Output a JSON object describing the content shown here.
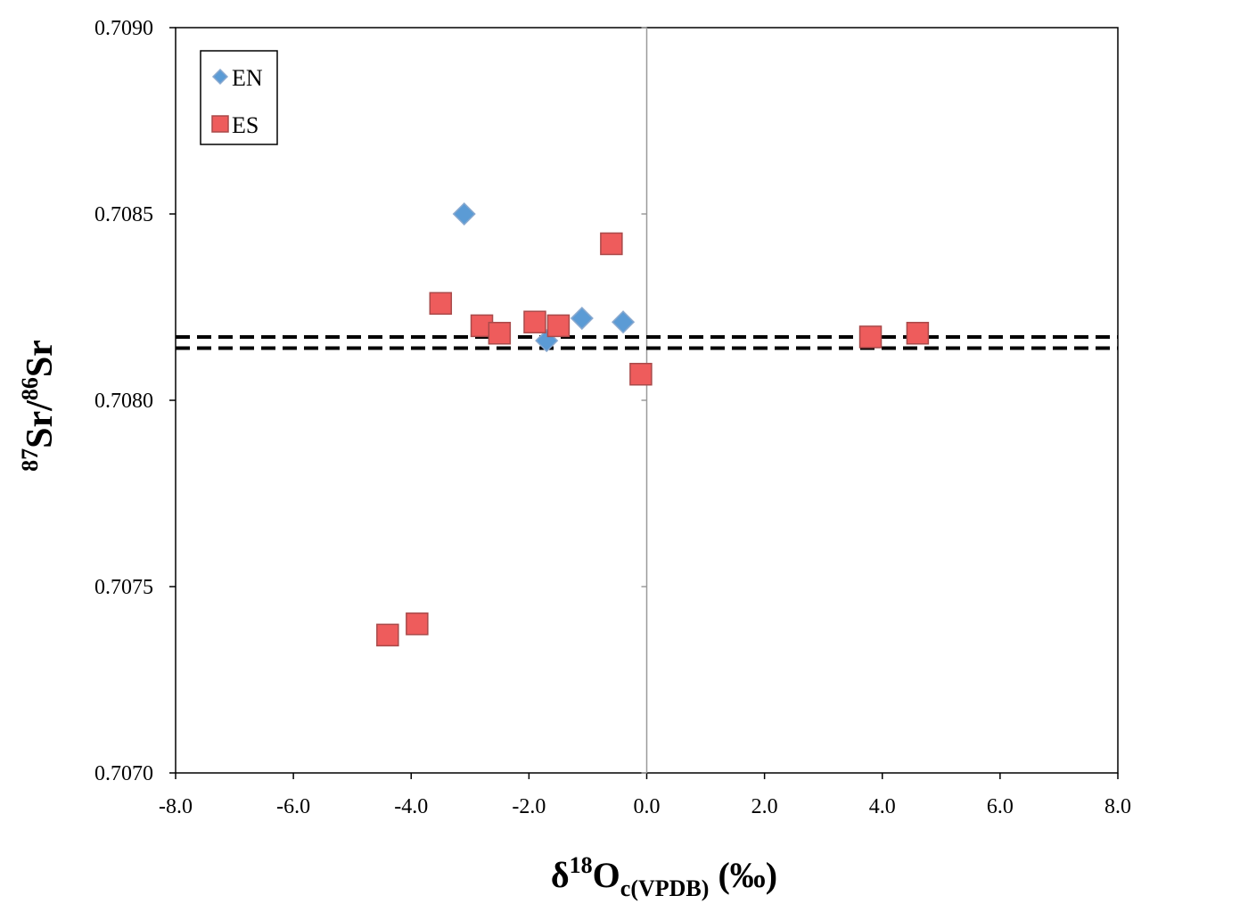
{
  "chart_data": {
    "type": "scatter",
    "title": "",
    "xlabel": {
      "delta": "δ",
      "sup": "18",
      "main": "O",
      "sub": "c(VPDB)",
      "unit": " (‰)"
    },
    "ylabel": {
      "sup1": "87",
      "main1": "Sr/",
      "sup2": "86",
      "main2": "Sr"
    },
    "xlim": [
      -8.0,
      8.0
    ],
    "ylim": [
      0.707,
      0.709
    ],
    "xticks": [
      "-8.0",
      "-6.0",
      "-4.0",
      "-2.0",
      "0.0",
      "2.0",
      "4.0",
      "6.0",
      "8.0"
    ],
    "xtick_values": [
      -8,
      -6,
      -4,
      -2,
      0,
      2,
      4,
      6,
      8
    ],
    "yticks": [
      "0.7070",
      "0.7075",
      "0.7080",
      "0.7085",
      "0.7090"
    ],
    "ytick_values": [
      0.707,
      0.7075,
      0.708,
      0.7085,
      0.709
    ],
    "grid": false,
    "legend_position": "top-left",
    "reference_lines": {
      "vertical_x": 0.0,
      "dashed_horizontal_y": [
        0.70817,
        0.70814
      ]
    },
    "series": [
      {
        "name": "EN",
        "marker": "diamond",
        "color": "#5b9bd5",
        "points": [
          {
            "x": -3.1,
            "y": 0.7085
          },
          {
            "x": -1.1,
            "y": 0.70822
          },
          {
            "x": -0.4,
            "y": 0.70821
          },
          {
            "x": -1.7,
            "y": 0.70816
          }
        ]
      },
      {
        "name": "ES",
        "marker": "square",
        "color": "#ee5c5c",
        "points": [
          {
            "x": -0.6,
            "y": 0.70842
          },
          {
            "x": -3.5,
            "y": 0.70826
          },
          {
            "x": -2.8,
            "y": 0.7082
          },
          {
            "x": -2.5,
            "y": 0.70818
          },
          {
            "x": -1.9,
            "y": 0.70821
          },
          {
            "x": -1.5,
            "y": 0.7082
          },
          {
            "x": -0.1,
            "y": 0.70807
          },
          {
            "x": 3.8,
            "y": 0.70817
          },
          {
            "x": 4.6,
            "y": 0.70818
          },
          {
            "x": -3.9,
            "y": 0.7074
          },
          {
            "x": -4.4,
            "y": 0.70737
          }
        ]
      }
    ]
  }
}
